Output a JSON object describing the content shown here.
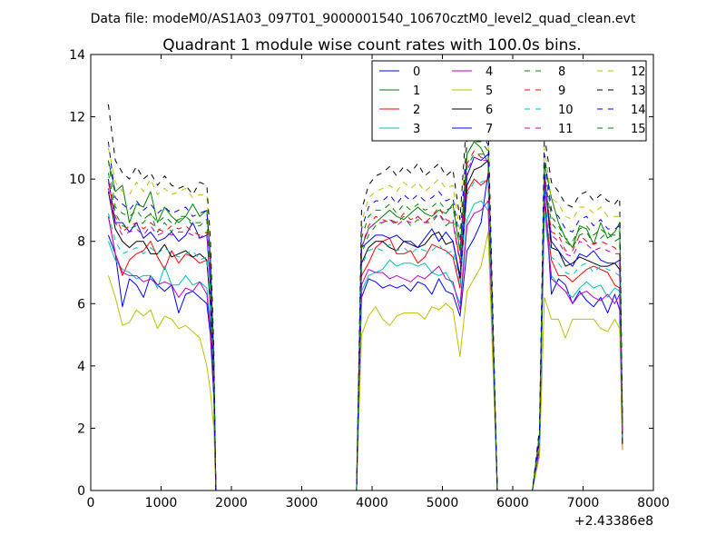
{
  "chart_data": {
    "type": "line",
    "suptitle": "Data file: modeM0/AS1A03_097T01_9000001540_10670cztM0_level2_quad_clean.evt",
    "title": "Quadrant 1 module wise count rates with 100.0s bins.",
    "xlabel": "",
    "ylabel": "",
    "xlim": [
      0,
      8000
    ],
    "ylim": [
      0,
      14
    ],
    "x_ticks": [
      0,
      1000,
      2000,
      3000,
      4000,
      5000,
      6000,
      7000,
      8000
    ],
    "y_ticks": [
      0,
      2,
      4,
      6,
      8,
      10,
      12,
      14
    ],
    "x_offset_label": "+2.43386e8",
    "grid": false,
    "legend_position": "top-right",
    "legend_columns": 4,
    "x": [
      250,
      350,
      450,
      550,
      650,
      750,
      850,
      950,
      1050,
      1150,
      1250,
      1350,
      1450,
      1550,
      1650,
      1700,
      1750,
      1780,
      1850,
      3780,
      3850,
      3950,
      4050,
      4150,
      4250,
      4350,
      4450,
      4550,
      4650,
      4750,
      4850,
      4950,
      5050,
      5150,
      5250,
      5350,
      5450,
      5550,
      5650,
      5780,
      6280,
      6380,
      6450,
      6550,
      6650,
      6750,
      6850,
      6950,
      7050,
      7150,
      7250,
      7350,
      7450,
      7520,
      7560
    ],
    "series": [
      {
        "name": "0",
        "color": "#0000ff",
        "dash": "solid",
        "values": [
          8.2,
          7.6,
          5.9,
          6.8,
          6.6,
          6.2,
          6.9,
          6.6,
          6.4,
          6.6,
          5.7,
          6.3,
          6.4,
          6.2,
          6.0,
          5.0,
          3.0,
          0.0,
          0.0,
          0.0,
          6.2,
          6.8,
          6.7,
          6.5,
          6.6,
          6.5,
          6.6,
          6.4,
          6.7,
          6.6,
          6.3,
          6.8,
          6.4,
          6.3,
          5.6,
          7.7,
          8.1,
          8.6,
          10.2,
          0.0,
          0.0,
          1.3,
          9.8,
          6.3,
          6.8,
          6.6,
          6.0,
          6.4,
          6.1,
          5.9,
          6.2,
          5.7,
          6.3,
          5.8,
          1.8
        ]
      },
      {
        "name": "1",
        "color": "#008000",
        "dash": "solid",
        "values": [
          10.6,
          9.6,
          9.8,
          8.6,
          9.2,
          9.1,
          9.6,
          8.6,
          9.1,
          8.8,
          8.6,
          8.8,
          9.2,
          8.8,
          9.0,
          7.5,
          4.2,
          0.0,
          0.0,
          0.0,
          7.8,
          8.4,
          8.6,
          8.8,
          9.0,
          8.8,
          8.7,
          8.9,
          9.1,
          8.9,
          8.8,
          9.0,
          8.9,
          9.2,
          7.7,
          10.8,
          11.2,
          11.0,
          10.5,
          0.0,
          0.0,
          1.8,
          10.5,
          9.4,
          8.6,
          8.1,
          7.8,
          8.5,
          8.4,
          7.9,
          8.6,
          8.1,
          8.3,
          8.6,
          2.2
        ]
      },
      {
        "name": "2",
        "color": "#ff0000",
        "dash": "solid",
        "values": [
          8.8,
          7.6,
          6.9,
          7.4,
          7.6,
          7.7,
          8.0,
          7.5,
          7.1,
          7.7,
          7.3,
          7.6,
          7.5,
          7.3,
          7.4,
          6.0,
          3.4,
          0.0,
          0.0,
          0.0,
          6.9,
          7.3,
          7.8,
          8.0,
          8.1,
          7.6,
          7.6,
          7.7,
          7.3,
          7.5,
          7.9,
          7.8,
          7.7,
          7.5,
          6.5,
          9.6,
          10.0,
          9.8,
          10.0,
          0.0,
          0.0,
          1.5,
          9.2,
          7.4,
          6.9,
          6.9,
          6.7,
          6.9,
          7.1,
          7.2,
          7.1,
          7.0,
          6.6,
          6.5,
          1.3
        ]
      },
      {
        "name": "3",
        "color": "#00bfbf",
        "dash": "solid",
        "values": [
          8.0,
          7.4,
          7.1,
          7.0,
          6.8,
          6.9,
          6.9,
          6.5,
          7.2,
          6.6,
          6.6,
          6.9,
          6.6,
          6.7,
          6.5,
          5.4,
          3.2,
          0.0,
          0.0,
          0.0,
          6.4,
          6.9,
          7.0,
          7.1,
          7.4,
          7.2,
          7.3,
          7.3,
          7.2,
          7.3,
          7.0,
          6.9,
          7.0,
          6.6,
          6.0,
          8.7,
          9.2,
          9.3,
          9.0,
          0.0,
          0.0,
          1.4,
          8.9,
          6.9,
          6.6,
          6.4,
          6.2,
          6.5,
          6.7,
          6.5,
          6.6,
          6.2,
          6.5,
          6.4,
          1.6
        ]
      },
      {
        "name": "4",
        "color": "#bf00bf",
        "dash": "solid",
        "values": [
          8.8,
          7.6,
          7.0,
          6.9,
          6.9,
          6.7,
          6.8,
          6.6,
          6.7,
          6.6,
          6.2,
          6.5,
          6.4,
          6.7,
          6.3,
          5.2,
          3.2,
          0.0,
          0.0,
          0.0,
          6.6,
          7.1,
          7.0,
          7.0,
          6.8,
          6.9,
          6.8,
          6.7,
          6.9,
          6.8,
          7.0,
          7.2,
          6.8,
          6.7,
          5.8,
          8.5,
          8.9,
          9.0,
          9.3,
          0.0,
          0.0,
          1.4,
          9.4,
          6.8,
          6.6,
          6.4,
          6.0,
          6.3,
          6.4,
          6.2,
          6.1,
          6.3,
          6.0,
          6.3,
          1.7
        ]
      },
      {
        "name": "5",
        "color": "#bfbf00",
        "dash": "solid",
        "values": [
          6.9,
          6.2,
          5.3,
          5.4,
          5.8,
          5.6,
          5.8,
          5.2,
          5.6,
          5.5,
          5.2,
          5.3,
          5.1,
          4.9,
          4.0,
          3.2,
          2.0,
          0.0,
          0.0,
          0.0,
          5.0,
          5.6,
          5.9,
          5.5,
          5.3,
          5.6,
          5.7,
          5.7,
          5.7,
          5.5,
          5.9,
          5.8,
          6.0,
          5.8,
          4.3,
          6.4,
          6.8,
          7.2,
          8.3,
          0.0,
          0.0,
          1.1,
          6.2,
          5.5,
          5.5,
          4.9,
          5.5,
          5.5,
          5.5,
          5.5,
          5.2,
          5.1,
          5.5,
          5.2,
          1.3
        ]
      },
      {
        "name": "6",
        "color": "#000000",
        "dash": "solid",
        "values": [
          9.6,
          8.4,
          8.0,
          7.8,
          8.0,
          8.0,
          7.6,
          7.6,
          7.9,
          7.5,
          7.6,
          7.7,
          7.5,
          7.6,
          7.4,
          6.0,
          3.4,
          0.0,
          0.0,
          0.0,
          7.3,
          7.8,
          8.0,
          8.0,
          7.8,
          7.7,
          8.0,
          7.9,
          7.8,
          7.9,
          8.2,
          8.3,
          7.9,
          8.0,
          6.8,
          9.8,
          10.3,
          10.4,
          10.6,
          0.0,
          0.0,
          1.6,
          10.1,
          7.8,
          7.7,
          7.2,
          7.3,
          7.5,
          7.4,
          7.3,
          7.2,
          7.2,
          7.3,
          7.1,
          1.5
        ]
      },
      {
        "name": "7",
        "color": "#0000ff",
        "dash": "solid",
        "values": [
          10.0,
          8.6,
          8.6,
          8.3,
          8.6,
          8.1,
          8.3,
          8.0,
          8.1,
          8.3,
          8.0,
          8.2,
          8.6,
          8.1,
          8.2,
          6.6,
          3.7,
          0.0,
          0.0,
          0.0,
          7.8,
          8.0,
          8.2,
          8.2,
          8.1,
          8.2,
          8.0,
          8.0,
          7.8,
          8.1,
          8.4,
          8.0,
          8.3,
          8.0,
          6.9,
          10.1,
          10.7,
          10.6,
          10.8,
          0.0,
          0.0,
          1.6,
          10.2,
          8.0,
          7.7,
          7.4,
          7.2,
          7.6,
          7.5,
          7.7,
          7.4,
          7.3,
          7.3,
          7.4,
          2.0
        ]
      },
      {
        "name": "8",
        "color": "#008000",
        "dash": "dashed",
        "values": [
          10.2,
          8.9,
          8.5,
          8.4,
          8.5,
          8.6,
          8.9,
          8.3,
          8.6,
          8.3,
          8.8,
          8.8,
          8.5,
          8.5,
          8.7,
          7.1,
          4.0,
          0.0,
          0.0,
          0.0,
          7.6,
          8.2,
          8.5,
          8.6,
          8.7,
          8.6,
          8.8,
          8.5,
          8.7,
          8.6,
          8.6,
          8.9,
          8.5,
          8.7,
          7.4,
          10.4,
          10.8,
          10.8,
          10.8,
          0.0,
          0.0,
          1.7,
          10.2,
          8.6,
          8.3,
          8.0,
          7.8,
          8.2,
          8.3,
          7.9,
          8.1,
          8.3,
          8.0,
          8.1,
          2.1
        ]
      },
      {
        "name": "9",
        "color": "#ff0000",
        "dash": "dashed",
        "values": [
          9.9,
          8.8,
          8.3,
          8.5,
          8.6,
          8.4,
          8.6,
          8.4,
          8.3,
          8.5,
          8.4,
          8.5,
          8.3,
          8.2,
          8.3,
          6.9,
          3.8,
          0.0,
          0.0,
          0.0,
          7.8,
          8.5,
          8.8,
          8.7,
          8.6,
          8.6,
          8.9,
          8.7,
          8.8,
          8.6,
          8.8,
          9.1,
          8.7,
          8.6,
          7.4,
          10.5,
          10.9,
          10.7,
          10.6,
          0.0,
          0.0,
          1.7,
          10.0,
          8.3,
          8.2,
          7.7,
          7.7,
          8.2,
          8.0,
          7.9,
          8.0,
          7.9,
          7.8,
          7.6,
          1.9
        ]
      },
      {
        "name": "10",
        "color": "#00bfbf",
        "dash": "dashed",
        "values": [
          8.9,
          8.0,
          7.6,
          7.7,
          7.8,
          7.6,
          7.8,
          7.6,
          7.8,
          7.6,
          7.5,
          7.6,
          7.7,
          7.4,
          7.5,
          6.2,
          3.6,
          0.0,
          0.0,
          0.0,
          7.2,
          7.7,
          7.8,
          7.7,
          7.9,
          7.7,
          7.8,
          7.6,
          7.8,
          7.7,
          7.7,
          7.9,
          7.6,
          7.7,
          6.6,
          9.5,
          9.9,
          9.9,
          10.0,
          0.0,
          0.0,
          1.5,
          9.6,
          7.5,
          7.3,
          7.0,
          6.9,
          7.2,
          7.3,
          7.0,
          7.2,
          7.1,
          7.0,
          6.9,
          1.7
        ]
      },
      {
        "name": "11",
        "color": "#bf00bf",
        "dash": "dashed",
        "values": [
          9.7,
          8.6,
          8.2,
          8.3,
          8.4,
          8.2,
          8.5,
          8.2,
          8.3,
          8.2,
          8.3,
          8.3,
          8.2,
          8.1,
          8.3,
          6.8,
          3.8,
          0.0,
          0.0,
          0.0,
          7.8,
          8.4,
          8.6,
          8.6,
          8.7,
          8.5,
          8.7,
          8.6,
          8.8,
          8.6,
          8.7,
          8.9,
          8.6,
          8.6,
          7.3,
          10.3,
          10.7,
          10.6,
          10.6,
          0.0,
          0.0,
          1.7,
          10.0,
          8.2,
          8.0,
          7.6,
          7.5,
          8.0,
          7.9,
          7.7,
          7.8,
          7.7,
          7.6,
          7.6,
          1.9
        ]
      },
      {
        "name": "12",
        "color": "#bfbf00",
        "dash": "dashed",
        "values": [
          11.0,
          9.9,
          9.6,
          9.5,
          9.9,
          9.6,
          10.0,
          9.5,
          9.7,
          9.5,
          9.6,
          9.7,
          9.4,
          9.5,
          9.5,
          7.8,
          4.4,
          0.0,
          0.0,
          0.0,
          8.6,
          9.4,
          9.6,
          9.7,
          9.8,
          9.6,
          9.9,
          9.7,
          9.9,
          9.6,
          9.8,
          10.0,
          9.7,
          9.8,
          8.3,
          11.6,
          12.0,
          12.0,
          11.4,
          0.0,
          0.0,
          1.9,
          11.0,
          9.4,
          9.2,
          8.8,
          8.7,
          9.1,
          9.1,
          8.9,
          9.1,
          8.8,
          8.8,
          8.8,
          2.2
        ]
      },
      {
        "name": "13",
        "color": "#000000",
        "dash": "dashed",
        "values": [
          12.4,
          10.6,
          10.2,
          10.0,
          10.4,
          10.0,
          10.2,
          9.8,
          10.1,
          9.8,
          9.7,
          9.8,
          9.5,
          9.9,
          9.8,
          8.1,
          4.6,
          0.0,
          0.0,
          0.0,
          9.0,
          9.8,
          10.1,
          10.2,
          10.4,
          10.1,
          10.4,
          10.2,
          10.5,
          10.1,
          10.3,
          10.5,
          10.1,
          10.3,
          8.7,
          12.1,
          12.6,
          12.5,
          11.8,
          0.0,
          0.0,
          2.0,
          11.4,
          9.9,
          9.6,
          9.2,
          9.1,
          9.5,
          9.6,
          9.3,
          9.5,
          9.3,
          9.2,
          9.4,
          2.3
        ]
      },
      {
        "name": "14",
        "color": "#0000ff",
        "dash": "dashed",
        "values": [
          11.2,
          9.4,
          9.2,
          9.0,
          9.3,
          9.0,
          9.2,
          8.9,
          9.1,
          8.9,
          9.0,
          9.1,
          8.8,
          8.9,
          9.0,
          7.4,
          4.2,
          0.0,
          0.0,
          0.0,
          8.4,
          9.1,
          9.3,
          9.3,
          9.5,
          9.2,
          9.5,
          9.3,
          9.5,
          9.3,
          9.4,
          9.6,
          9.3,
          9.4,
          8.0,
          11.2,
          11.6,
          11.5,
          11.1,
          0.0,
          0.0,
          1.8,
          10.8,
          9.0,
          8.8,
          8.4,
          8.3,
          8.7,
          8.8,
          8.5,
          8.7,
          8.4,
          8.4,
          8.5,
          2.1
        ]
      },
      {
        "name": "15",
        "color": "#008000",
        "dash": "dashed",
        "values": [
          10.6,
          9.1,
          8.9,
          8.8,
          9.0,
          8.7,
          8.9,
          8.6,
          8.8,
          8.6,
          8.7,
          8.8,
          8.6,
          8.6,
          8.7,
          7.2,
          4.1,
          0.0,
          0.0,
          0.0,
          8.1,
          8.8,
          9.0,
          9.0,
          9.2,
          8.9,
          9.2,
          9.0,
          9.2,
          9.0,
          9.1,
          9.3,
          9.0,
          9.1,
          7.7,
          10.8,
          11.2,
          11.2,
          10.9,
          0.0,
          0.0,
          1.8,
          10.5,
          8.8,
          8.5,
          8.1,
          8.0,
          8.4,
          8.5,
          8.2,
          8.4,
          8.2,
          8.2,
          8.3,
          2.0
        ]
      }
    ]
  }
}
